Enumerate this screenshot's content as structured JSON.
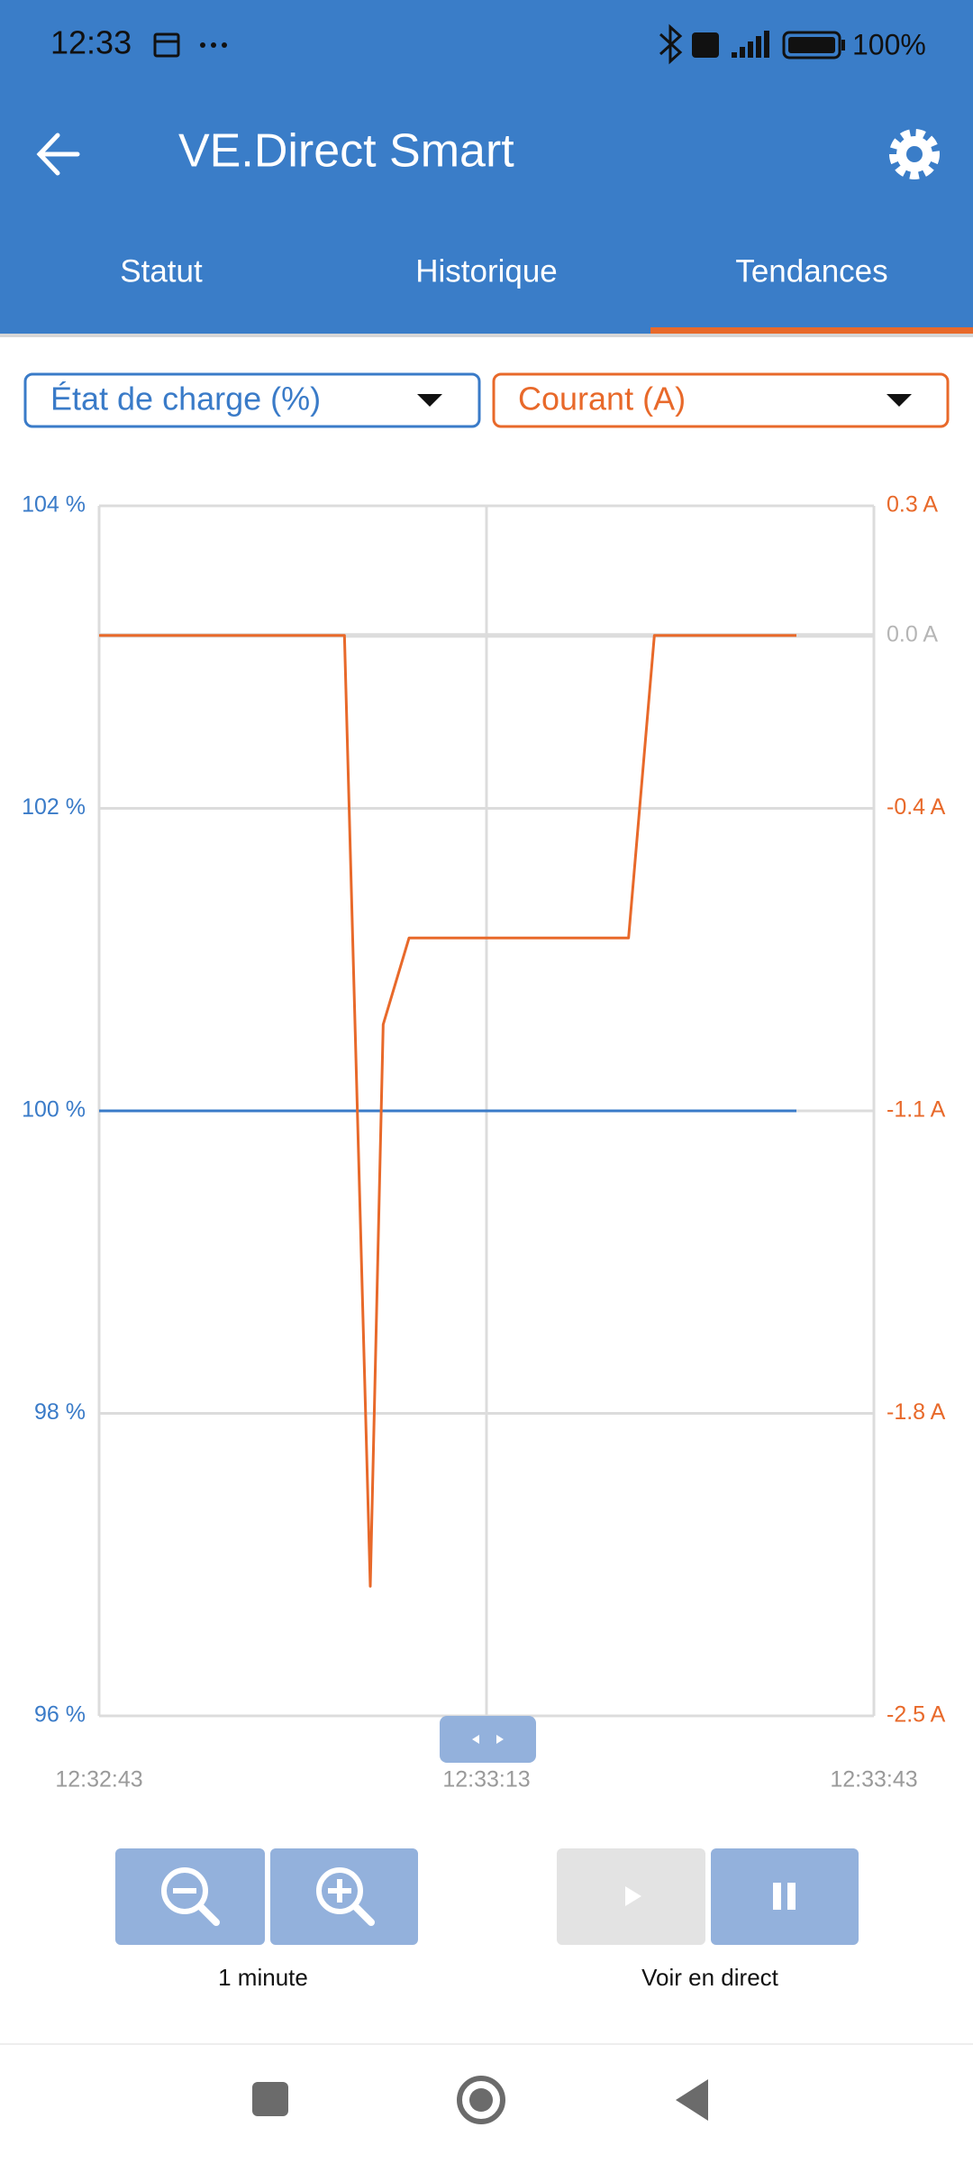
{
  "status_bar": {
    "time": "12:33",
    "battery": "100%"
  },
  "app_bar": {
    "title": "VE.Direct Smart"
  },
  "tabs": [
    "Statut",
    "Historique",
    "Tendances"
  ],
  "chart_data": {
    "type": "line",
    "series": [
      {
        "name": "État de charge (%)",
        "color": "#3a7bc8",
        "x": [
          "12:32:43",
          "12:33:37"
        ],
        "values": [
          100,
          100
        ]
      },
      {
        "name": "Courant (A)",
        "color": "#e8692a",
        "axis": "y2",
        "x": [
          "12:32:43",
          "12:33:02",
          "12:33:04",
          "12:33:05",
          "12:33:07",
          "12:33:24",
          "12:33:26",
          "12:33:37"
        ],
        "values": [
          0,
          0,
          -2.2,
          -0.9,
          -0.7,
          -0.7,
          0,
          0
        ]
      }
    ],
    "xlim": [
      "12:32:43",
      "12:33:43"
    ],
    "xticks": [
      "12:32:43",
      "12:33:13",
      "12:33:43"
    ],
    "ylim": [
      96,
      104
    ],
    "yticks": [
      {
        "value": 104,
        "label": "104 %"
      },
      {
        "value": 102,
        "label": "102 %"
      },
      {
        "value": 100,
        "label": "100 %"
      },
      {
        "value": 98,
        "label": "98 %"
      },
      {
        "value": 96,
        "label": "96 %"
      }
    ],
    "y2lim": [
      -2.5,
      0.3
    ],
    "y2ticks": [
      {
        "value": 0.3,
        "label": "0.3 A"
      },
      {
        "value": 0.0,
        "label": "0.0 A"
      },
      {
        "value": -0.4,
        "label": "-0.4 A"
      },
      {
        "value": -1.1,
        "label": "-1.1 A"
      },
      {
        "value": -1.8,
        "label": "-1.8 A"
      },
      {
        "value": -2.5,
        "label": "-2.5 A"
      }
    ],
    "grid": true
  },
  "controls": {
    "zoom_label": "1 minute",
    "live_label": "Voir en direct"
  }
}
